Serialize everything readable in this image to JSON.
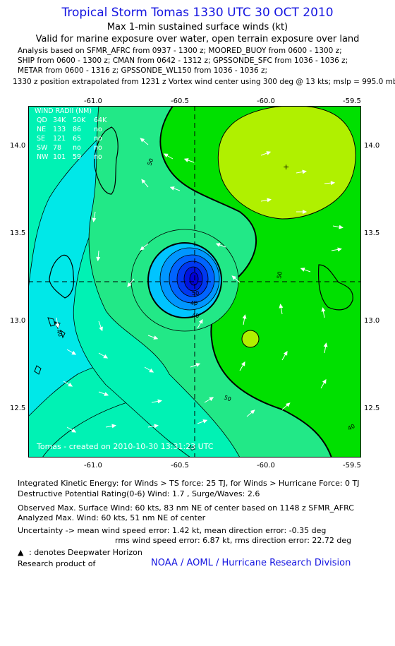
{
  "header": {
    "title": "Tropical Storm Tomas 1330 UTC 30 OCT 2010",
    "subtitle": "Max 1-min sustained surface winds (kt)",
    "valid_for": "Valid for marine exposure over water, open terrain exposure over land"
  },
  "analysis": [
    "Analysis based on SFMR_AFRC from 0937 - 1300 z; MOORED_BUOY from 0600 - 1300 z;",
    "SHIP from 0600 - 1300 z; CMAN from 0642 - 1312 z; GPSSONDE_SFC from 1036 - 1036 z;",
    "METAR from 0600 - 1316 z; GPSSONDE_WL150 from 1036 - 1036 z;",
    "1330 z position extrapolated from 1231 z Vortex wind center using 300 deg @ 13 kts; mslp = 995.0 mb"
  ],
  "wind_radii": {
    "title": "WIND RADII (NM)",
    "header": [
      "QD",
      "34K",
      "50K",
      "64K"
    ],
    "rows": [
      [
        "NE",
        "133",
        "86",
        "no"
      ],
      [
        "SE",
        "121",
        "65",
        "no"
      ],
      [
        "SW",
        "78",
        "no",
        "no"
      ],
      [
        "NW",
        "101",
        "59",
        "no"
      ]
    ]
  },
  "credit": "Tomas - created on 2010-10-30 13:31:23 UTC",
  "chart_data": {
    "type": "contour",
    "xlabel": "",
    "ylabel": "",
    "x_ticks": [
      "-61.0",
      "-60.5",
      "-60.0",
      "-59.5"
    ],
    "y_ticks": [
      "14.0",
      "13.5",
      "13.0",
      "12.5"
    ],
    "xlim": [
      -61.38,
      -59.45
    ],
    "ylim": [
      12.28,
      14.22
    ],
    "center": {
      "lon": -60.41,
      "lat": 13.22
    },
    "secondary_marker": {
      "lon": -59.86,
      "lat": 13.87
    },
    "contour_labels": [
      "50",
      "50",
      "50",
      "50",
      "40",
      "40",
      "40",
      "40",
      "40"
    ],
    "colors": {
      "low": "#00e8e8",
      "mid_low": "#00f5b0",
      "mid": "#22e887",
      "high": "#00e000",
      "peak": "#b0f000",
      "core": "#0000d8"
    }
  },
  "summary": {
    "ike": "Integrated Kinetic Energy:  for Winds > TS force: 25 TJ,  for Winds > Hurricane Force: 0 TJ",
    "dp": "Destructive Potential Rating(0-6)   Wind: 1.7 , Surge/Waves: 2.6",
    "obs": "Observed Max. Surface Wind: 60 kts, 83 nm NE of center based on 1148 z SFMR_AFRC",
    "anl": "Analyzed Max. Wind: 60 kts, 51 nm NE of center",
    "unc1": "Uncertainty -> mean wind speed error: 1.42 kt,   mean direction error:  -0.35 deg",
    "unc2": "rms wind speed error: 6.87 kt,   rms direction error: 22.72 deg",
    "dwh": ": denotes Deepwater Horizon",
    "research": "Research product of",
    "org": "NOAA / AOML / Hurricane Research Division"
  }
}
